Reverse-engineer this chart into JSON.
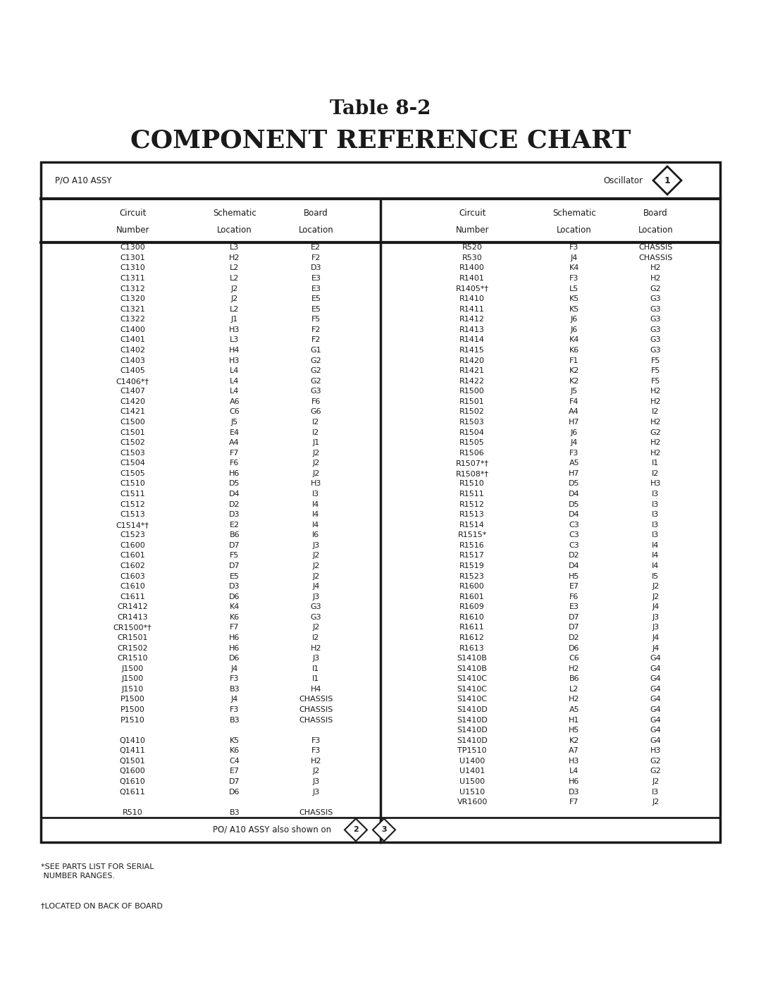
{
  "title_line1": "Table 8-2",
  "title_line2": "COMPONENT REFERENCE CHART",
  "header_label": "P/O A10 ASSY",
  "oscillator_label": "Oscillator",
  "oscillator_num": "1",
  "footer_text": "PO/ A10 ASSY also shown on",
  "footer_nums": [
    "2",
    "3"
  ],
  "footnote1": "*SEE PARTS LIST FOR SERIAL\n NUMBER RANGES.",
  "footnote2": "†LOCATED ON BACK OF BOARD",
  "left_data": [
    [
      "C1300",
      "L3",
      "E2"
    ],
    [
      "C1301",
      "H2",
      "F2"
    ],
    [
      "C1310",
      "L2",
      "D3"
    ],
    [
      "C1311",
      "L2",
      "E3"
    ],
    [
      "C1312",
      "J2",
      "E3"
    ],
    [
      "C1320",
      "J2",
      "E5"
    ],
    [
      "C1321",
      "L2",
      "E5"
    ],
    [
      "C1322",
      "J1",
      "F5"
    ],
    [
      "C1400",
      "H3",
      "F2"
    ],
    [
      "C1401",
      "L3",
      "F2"
    ],
    [
      "C1402",
      "H4",
      "G1"
    ],
    [
      "C1403",
      "H3",
      "G2"
    ],
    [
      "C1405",
      "L4",
      "G2"
    ],
    [
      "C1406*†",
      "L4",
      "G2"
    ],
    [
      "C1407",
      "L4",
      "G3"
    ],
    [
      "C1420",
      "A6",
      "F6"
    ],
    [
      "C1421",
      "C6",
      "G6"
    ],
    [
      "C1500",
      "J5",
      "I2"
    ],
    [
      "C1501",
      "E4",
      "I2"
    ],
    [
      "C1502",
      "A4",
      "J1"
    ],
    [
      "C1503",
      "F7",
      "J2"
    ],
    [
      "C1504",
      "F6",
      "J2"
    ],
    [
      "C1505",
      "H6",
      "J2"
    ],
    [
      "C1510",
      "D5",
      "H3"
    ],
    [
      "C1511",
      "D4",
      "I3"
    ],
    [
      "C1512",
      "D2",
      "I4"
    ],
    [
      "C1513",
      "D3",
      "I4"
    ],
    [
      "C1514*†",
      "E2",
      "I4"
    ],
    [
      "C1523",
      "B6",
      "I6"
    ],
    [
      "C1600",
      "D7",
      "J3"
    ],
    [
      "C1601",
      "F5",
      "J2"
    ],
    [
      "C1602",
      "D7",
      "J2"
    ],
    [
      "C1603",
      "E5",
      "J2"
    ],
    [
      "C1610",
      "D3",
      "J4"
    ],
    [
      "C1611",
      "D6",
      "J3"
    ],
    [
      "CR1412",
      "K4",
      "G3"
    ],
    [
      "CR1413",
      "K6",
      "G3"
    ],
    [
      "CR1500*†",
      "F7",
      "J2"
    ],
    [
      "CR1501",
      "H6",
      "I2"
    ],
    [
      "CR1502",
      "H6",
      "H2"
    ],
    [
      "CR1510",
      "D6",
      "J3"
    ],
    [
      "J1500",
      "J4",
      "I1"
    ],
    [
      "J1500",
      "F3",
      "I1"
    ],
    [
      "J1510",
      "B3",
      "H4"
    ],
    [
      "P1500",
      "J4",
      "CHASSIS"
    ],
    [
      "P1500",
      "F3",
      "CHASSIS"
    ],
    [
      "P1510",
      "B3",
      "CHASSIS"
    ],
    [
      "",
      "",
      ""
    ],
    [
      "Q1410",
      "K5",
      "F3"
    ],
    [
      "Q1411",
      "K6",
      "F3"
    ],
    [
      "Q1501",
      "C4",
      "H2"
    ],
    [
      "Q1600",
      "E7",
      "J2"
    ],
    [
      "Q1610",
      "D7",
      "J3"
    ],
    [
      "Q1611",
      "D6",
      "J3"
    ],
    [
      "",
      "",
      ""
    ],
    [
      "R510",
      "B3",
      "CHASSIS"
    ]
  ],
  "right_data": [
    [
      "R520",
      "F3",
      "CHASSIS"
    ],
    [
      "R530",
      "J4",
      "CHASSIS"
    ],
    [
      "R1400",
      "K4",
      "H2"
    ],
    [
      "R1401",
      "F3",
      "H2"
    ],
    [
      "R1405*†",
      "L5",
      "G2"
    ],
    [
      "R1410",
      "K5",
      "G3"
    ],
    [
      "R1411",
      "K5",
      "G3"
    ],
    [
      "R1412",
      "J6",
      "G3"
    ],
    [
      "R1413",
      "J6",
      "G3"
    ],
    [
      "R1414",
      "K4",
      "G3"
    ],
    [
      "R1415",
      "K6",
      "G3"
    ],
    [
      "R1420",
      "F1",
      "F5"
    ],
    [
      "R1421",
      "K2",
      "F5"
    ],
    [
      "R1422",
      "K2",
      "F5"
    ],
    [
      "R1500",
      "J5",
      "H2"
    ],
    [
      "R1501",
      "F4",
      "H2"
    ],
    [
      "R1502",
      "A4",
      "I2"
    ],
    [
      "R1503",
      "H7",
      "H2"
    ],
    [
      "R1504",
      "J6",
      "G2"
    ],
    [
      "R1505",
      "J4",
      "H2"
    ],
    [
      "R1506",
      "F3",
      "H2"
    ],
    [
      "R1507*†",
      "A5",
      "I1"
    ],
    [
      "R1508*†",
      "H7",
      "I2"
    ],
    [
      "R1510",
      "D5",
      "H3"
    ],
    [
      "R1511",
      "D4",
      "I3"
    ],
    [
      "R1512",
      "D5",
      "I3"
    ],
    [
      "R1513",
      "D4",
      "I3"
    ],
    [
      "R1514",
      "C3",
      "I3"
    ],
    [
      "R1515*",
      "C3",
      "I3"
    ],
    [
      "R1516",
      "C3",
      "I4"
    ],
    [
      "R1517",
      "D2",
      "I4"
    ],
    [
      "R1519",
      "D4",
      "I4"
    ],
    [
      "R1523",
      "H5",
      "I5"
    ],
    [
      "R1600",
      "E7",
      "J2"
    ],
    [
      "R1601",
      "F6",
      "J2"
    ],
    [
      "R1609",
      "E3",
      "J4"
    ],
    [
      "R1610",
      "D7",
      "J3"
    ],
    [
      "R1611",
      "D7",
      "J3"
    ],
    [
      "R1612",
      "D2",
      "J4"
    ],
    [
      "R1613",
      "D6",
      "J4"
    ],
    [
      "S1410B",
      "C6",
      "G4"
    ],
    [
      "S1410B",
      "H2",
      "G4"
    ],
    [
      "S1410C",
      "B6",
      "G4"
    ],
    [
      "S1410C",
      "L2",
      "G4"
    ],
    [
      "S1410C",
      "H2",
      "G4"
    ],
    [
      "S1410D",
      "A5",
      "G4"
    ],
    [
      "S1410D",
      "H1",
      "G4"
    ],
    [
      "S1410D",
      "H5",
      "G4"
    ],
    [
      "S1410D",
      "K2",
      "G4"
    ],
    [
      "TP1510",
      "A7",
      "H3"
    ],
    [
      "U1400",
      "H3",
      "G2"
    ],
    [
      "U1401",
      "L4",
      "G2"
    ],
    [
      "U1500",
      "H6",
      "J2"
    ],
    [
      "U1510",
      "D3",
      "I3"
    ],
    [
      "VR1600",
      "F7",
      "J2"
    ]
  ],
  "bg_color": "#ffffff",
  "text_color": "#1a1a1a",
  "border_color": "#1a1a1a",
  "title1_fontsize": 20,
  "title2_fontsize": 26,
  "data_fontsize": 8.0,
  "header_fontsize": 8.5,
  "col_header_fontsize": 8.5
}
